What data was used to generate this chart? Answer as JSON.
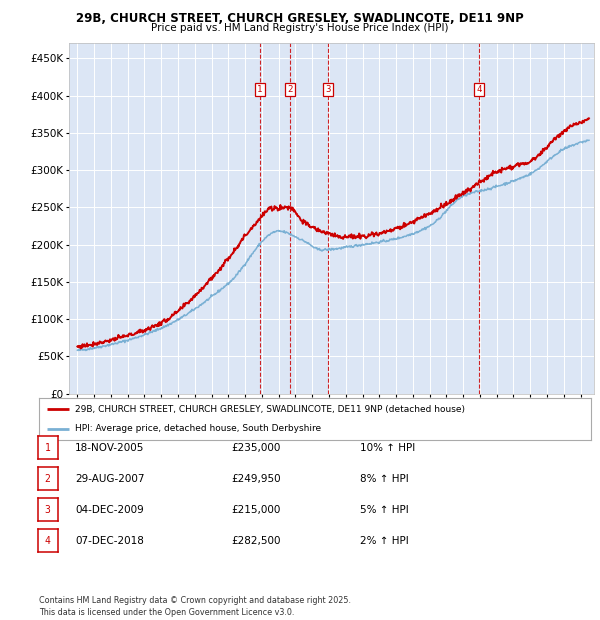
{
  "title_line1": "29B, CHURCH STREET, CHURCH GRESLEY, SWADLINCOTE, DE11 9NP",
  "title_line2": "Price paid vs. HM Land Registry's House Price Index (HPI)",
  "plot_bg_color": "#dce6f5",
  "sales": [
    {
      "num": 1,
      "date": "18-NOV-2005",
      "price": 235000,
      "pct": "10%",
      "year": 2005.88
    },
    {
      "num": 2,
      "date": "29-AUG-2007",
      "price": 249950,
      "pct": "8%",
      "year": 2007.66
    },
    {
      "num": 3,
      "date": "04-DEC-2009",
      "price": 215000,
      "pct": "5%",
      "year": 2009.92
    },
    {
      "num": 4,
      "date": "07-DEC-2018",
      "price": 282500,
      "pct": "2%",
      "year": 2018.93
    }
  ],
  "legend_entries": [
    {
      "label": "29B, CHURCH STREET, CHURCH GRESLEY, SWADLINCOTE, DE11 9NP (detached house)",
      "color": "#cc0000"
    },
    {
      "label": "HPI: Average price, detached house, South Derbyshire",
      "color": "#7ab0d4"
    }
  ],
  "table_rows": [
    {
      "num": 1,
      "date": "18-NOV-2005",
      "price": "£235,000",
      "pct": "10% ↑ HPI"
    },
    {
      "num": 2,
      "date": "29-AUG-2007",
      "price": "£249,950",
      "pct": "8% ↑ HPI"
    },
    {
      "num": 3,
      "date": "04-DEC-2009",
      "price": "£215,000",
      "pct": "5% ↑ HPI"
    },
    {
      "num": 4,
      "date": "07-DEC-2018",
      "price": "£282,500",
      "pct": "2% ↑ HPI"
    }
  ],
  "footer": "Contains HM Land Registry data © Crown copyright and database right 2025.\nThis data is licensed under the Open Government Licence v3.0.",
  "ylim": [
    0,
    470000
  ],
  "xlim_start": 1994.5,
  "xlim_end": 2025.8,
  "hpi_anchors_x": [
    1995,
    1997,
    2000,
    2004,
    2007,
    2008.5,
    2009.5,
    2012,
    2014,
    2016,
    2018,
    2020,
    2022,
    2024,
    2025.5
  ],
  "hpi_anchors_y": [
    58000,
    66000,
    88000,
    148000,
    218000,
    205000,
    193000,
    200000,
    208000,
    225000,
    265000,
    278000,
    295000,
    328000,
    340000
  ],
  "pp_anchors_x": [
    1995,
    1997,
    2000,
    2003,
    2005.88,
    2006.5,
    2007.66,
    2008.5,
    2009.92,
    2011,
    2013,
    2016,
    2018.93,
    2020,
    2022,
    2024,
    2025.5
  ],
  "pp_anchors_y": [
    63000,
    72000,
    95000,
    155000,
    235000,
    248000,
    249950,
    230000,
    215000,
    210000,
    215000,
    242000,
    282500,
    298000,
    312000,
    352000,
    368000
  ]
}
